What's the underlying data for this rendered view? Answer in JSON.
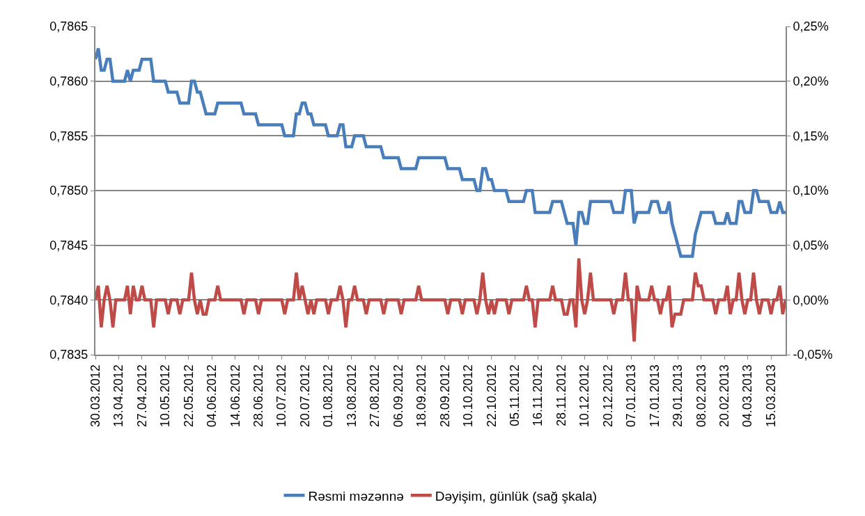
{
  "chart_data": {
    "type": "line",
    "categories": [
      "30.03.2012",
      null,
      null,
      null,
      null,
      null,
      null,
      null,
      "13.04.2012",
      null,
      null,
      null,
      null,
      null,
      null,
      null,
      "27.04.2012",
      null,
      null,
      null,
      null,
      null,
      null,
      null,
      "10.05.2012",
      null,
      null,
      null,
      null,
      null,
      null,
      null,
      "22.05.2012",
      null,
      null,
      null,
      null,
      null,
      null,
      null,
      "04.06.2012",
      null,
      null,
      null,
      null,
      null,
      null,
      null,
      "14.06.2012",
      null,
      null,
      null,
      null,
      null,
      null,
      null,
      "28.06.2012",
      null,
      null,
      null,
      null,
      null,
      null,
      null,
      "10.07.2012",
      null,
      null,
      null,
      null,
      null,
      null,
      null,
      "20.07.2012",
      null,
      null,
      null,
      null,
      null,
      null,
      null,
      "01.08.2012",
      null,
      null,
      null,
      null,
      null,
      null,
      null,
      "13.08.2012",
      null,
      null,
      null,
      null,
      null,
      null,
      null,
      "27.08.2012",
      null,
      null,
      null,
      null,
      null,
      null,
      null,
      "06.09.2012",
      null,
      null,
      null,
      null,
      null,
      null,
      null,
      "18.09.2012",
      null,
      null,
      null,
      null,
      null,
      null,
      null,
      "28.09.2012",
      null,
      null,
      null,
      null,
      null,
      null,
      null,
      "10.10.2012",
      null,
      null,
      null,
      null,
      null,
      null,
      null,
      "22.10.2012",
      null,
      null,
      null,
      null,
      null,
      null,
      null,
      "05.11.2012",
      null,
      null,
      null,
      null,
      null,
      null,
      null,
      "16.11.2012",
      null,
      null,
      null,
      null,
      null,
      null,
      null,
      "28.11.2012",
      null,
      null,
      null,
      null,
      null,
      null,
      null,
      "10.12.2012",
      null,
      null,
      null,
      null,
      null,
      null,
      null,
      "20.12.2012",
      null,
      null,
      null,
      null,
      null,
      null,
      null,
      "07.01.2013",
      null,
      null,
      null,
      null,
      null,
      null,
      null,
      "17.01.2013",
      null,
      null,
      null,
      null,
      null,
      null,
      null,
      "29.01.2013",
      null,
      null,
      null,
      null,
      null,
      null,
      null,
      "08.02.2013",
      null,
      null,
      null,
      null,
      null,
      null,
      null,
      "20.02.2013",
      null,
      null,
      null,
      null,
      null,
      null,
      null,
      "04.03.2013",
      null,
      null,
      null,
      null,
      null,
      null,
      null,
      "15.03.2013",
      null,
      null,
      null,
      null,
      null
    ],
    "series": [
      {
        "name": "Rəsmi məzənnə",
        "color": "#4a7ebb",
        "values": [
          0.7862,
          0.7863,
          0.7861,
          0.7861,
          0.7862,
          0.7862,
          0.786,
          0.786,
          0.786,
          0.786,
          0.786,
          0.7861,
          0.786,
          0.7861,
          0.7861,
          0.7861,
          0.7862,
          0.7862,
          0.7862,
          0.7862,
          0.786,
          0.786,
          0.786,
          0.786,
          0.786,
          0.7859,
          0.7859,
          0.7859,
          0.7859,
          0.7858,
          0.7858,
          0.7858,
          0.7858,
          0.786,
          0.786,
          0.7859,
          0.7859,
          0.7858,
          0.7857,
          0.7857,
          0.7857,
          0.7857,
          0.7858,
          0.7858,
          0.7858,
          0.7858,
          0.7858,
          0.7858,
          0.7858,
          0.7858,
          0.7858,
          0.7857,
          0.7857,
          0.7857,
          0.7857,
          0.7857,
          0.7856,
          0.7856,
          0.7856,
          0.7856,
          0.7856,
          0.7856,
          0.7856,
          0.7856,
          0.7856,
          0.7855,
          0.7855,
          0.7855,
          0.7855,
          0.7857,
          0.7857,
          0.7858,
          0.7858,
          0.7857,
          0.7857,
          0.7856,
          0.7856,
          0.7856,
          0.7856,
          0.7856,
          0.7855,
          0.7855,
          0.7855,
          0.7855,
          0.7856,
          0.7856,
          0.7854,
          0.7854,
          0.7854,
          0.7855,
          0.7855,
          0.7855,
          0.7855,
          0.7854,
          0.7854,
          0.7854,
          0.7854,
          0.7854,
          0.7854,
          0.7853,
          0.7853,
          0.7853,
          0.7853,
          0.7853,
          0.7853,
          0.7852,
          0.7852,
          0.7852,
          0.7852,
          0.7852,
          0.7852,
          0.7853,
          0.7853,
          0.7853,
          0.7853,
          0.7853,
          0.7853,
          0.7853,
          0.7853,
          0.7853,
          0.7853,
          0.7852,
          0.7852,
          0.7852,
          0.7852,
          0.7852,
          0.7851,
          0.7851,
          0.7851,
          0.7851,
          0.7851,
          0.785,
          0.785,
          0.7852,
          0.7852,
          0.7851,
          0.7851,
          0.785,
          0.785,
          0.785,
          0.785,
          0.785,
          0.7849,
          0.7849,
          0.7849,
          0.7849,
          0.7849,
          0.7849,
          0.785,
          0.785,
          0.785,
          0.7848,
          0.7848,
          0.7848,
          0.7848,
          0.7848,
          0.7848,
          0.7849,
          0.7849,
          0.7849,
          0.7849,
          0.7848,
          0.7847,
          0.7847,
          0.7847,
          0.7845,
          0.7848,
          0.7848,
          0.7847,
          0.7847,
          0.7849,
          0.7849,
          0.7849,
          0.7849,
          0.7849,
          0.7849,
          0.7849,
          0.7849,
          0.7848,
          0.7848,
          0.7848,
          0.7848,
          0.785,
          0.785,
          0.785,
          0.7847,
          0.7848,
          0.7848,
          0.7848,
          0.7848,
          0.7848,
          0.7849,
          0.7849,
          0.7849,
          0.7848,
          0.7848,
          0.7848,
          0.7849,
          0.7847,
          0.7846,
          0.7845,
          0.7844,
          0.7844,
          0.7844,
          0.7844,
          0.7844,
          0.7846,
          0.7847,
          0.7848,
          0.7848,
          0.7848,
          0.7848,
          0.7848,
          0.7847,
          0.7847,
          0.7847,
          0.7847,
          0.7848,
          0.7847,
          0.7847,
          0.7847,
          0.7849,
          0.7849,
          0.7848,
          0.7848,
          0.7848,
          0.785,
          0.785,
          0.7849,
          0.7849,
          0.7849,
          0.7849,
          0.7848,
          0.7848,
          0.7848,
          0.7849,
          0.7848,
          0.7848
        ]
      },
      {
        "name": "Dəyişim, günlük (sağ şkala)",
        "color": "#be4b48",
        "axis": "y2",
        "values": [
          0,
          0.013,
          -0.025,
          0,
          0.013,
          0,
          -0.025,
          0,
          0,
          0,
          0,
          0.013,
          -0.013,
          0.013,
          0,
          0,
          0.013,
          0,
          0,
          0,
          -0.025,
          0,
          0,
          0,
          0,
          -0.013,
          0,
          0,
          0,
          -0.013,
          0,
          0,
          0,
          0.025,
          0,
          -0.013,
          0,
          -0.013,
          -0.013,
          0,
          0,
          0,
          0.013,
          0,
          0,
          0,
          0,
          0,
          0,
          0,
          0,
          -0.013,
          0,
          0,
          0,
          0,
          -0.013,
          0,
          0,
          0,
          0,
          0,
          0,
          0,
          0,
          -0.013,
          0,
          0,
          0,
          0.025,
          0,
          0.013,
          0,
          -0.013,
          0,
          -0.013,
          0,
          0,
          0,
          0,
          -0.013,
          0,
          0,
          0,
          0.013,
          0,
          -0.025,
          0,
          0,
          0.013,
          0,
          0,
          0,
          -0.013,
          0,
          0,
          0,
          0,
          0,
          -0.013,
          0,
          0,
          0,
          0,
          0,
          -0.013,
          0,
          0,
          0,
          0,
          0,
          0.013,
          0,
          0,
          0,
          0,
          0,
          0,
          0,
          0,
          0,
          -0.013,
          0,
          0,
          0,
          0,
          -0.013,
          0,
          0,
          0,
          0,
          -0.013,
          0,
          0.025,
          0,
          -0.013,
          0,
          -0.013,
          0,
          0,
          0,
          0,
          -0.013,
          0,
          0,
          0,
          0,
          0,
          0.013,
          0,
          0,
          -0.025,
          0,
          0,
          0,
          0,
          0,
          0.013,
          0,
          0,
          0,
          -0.013,
          -0.013,
          0,
          0,
          -0.025,
          0.038,
          0,
          -0.013,
          0,
          0.025,
          0,
          0,
          0,
          0,
          0,
          0,
          0,
          -0.013,
          0,
          0,
          0,
          0.025,
          0,
          0,
          -0.038,
          0.013,
          0,
          0,
          0,
          0,
          0.013,
          0,
          0,
          -0.013,
          0,
          0,
          0.013,
          -0.025,
          -0.013,
          -0.013,
          -0.013,
          0,
          0,
          0,
          0,
          0.025,
          0.013,
          0.013,
          0,
          0,
          0,
          0,
          -0.013,
          0,
          0,
          0,
          0.013,
          -0.013,
          0,
          0,
          0.025,
          0,
          -0.013,
          0,
          0,
          0.025,
          0,
          -0.013,
          0,
          0,
          0,
          -0.013,
          0,
          0,
          0.013,
          -0.013,
          0
        ]
      }
    ],
    "ylim": [
      0.7835,
      0.7865
    ],
    "yticks": [
      {
        "value": 0.7835,
        "label": "0,7835"
      },
      {
        "value": 0.784,
        "label": "0,7840"
      },
      {
        "value": 0.7845,
        "label": "0,7845"
      },
      {
        "value": 0.785,
        "label": "0,7850"
      },
      {
        "value": 0.7855,
        "label": "0,7855"
      },
      {
        "value": 0.786,
        "label": "0,7860"
      },
      {
        "value": 0.7865,
        "label": "0,7865"
      }
    ],
    "y2lim": [
      -0.05,
      0.25
    ],
    "y2ticks": [
      {
        "value": -0.05,
        "label": "-0,05%"
      },
      {
        "value": 0,
        "label": "0,00%"
      },
      {
        "value": 0.05,
        "label": "0,05%"
      },
      {
        "value": 0.1,
        "label": "0,10%"
      },
      {
        "value": 0.15,
        "label": "0,15%"
      },
      {
        "value": 0.2,
        "label": "0,20%"
      },
      {
        "value": 0.25,
        "label": "0,25%"
      }
    ],
    "grid": "y",
    "legend": "bottom"
  }
}
